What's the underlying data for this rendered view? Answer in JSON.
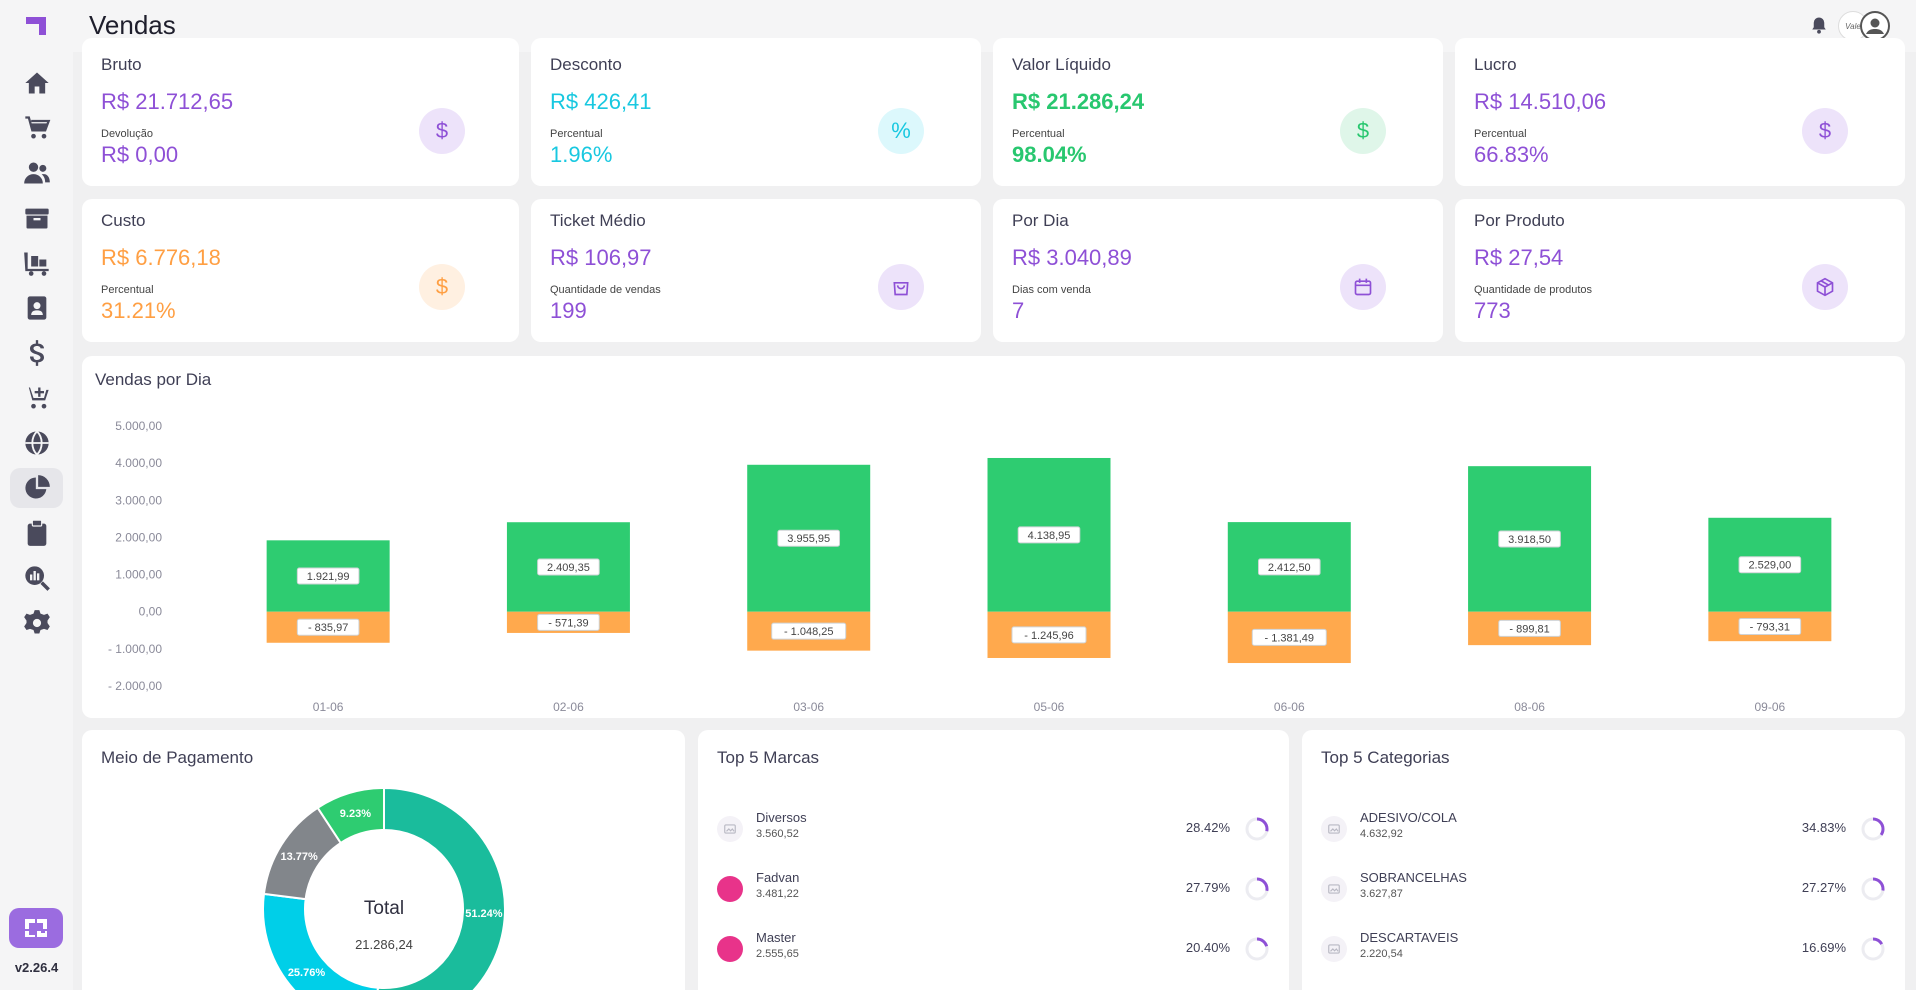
{
  "app": {
    "version": "v2.26.4",
    "page_title": "Vendas",
    "avatar_text": "Vale"
  },
  "sidebar": {
    "items": [
      {
        "name": "home-icon"
      },
      {
        "name": "cart-icon"
      },
      {
        "name": "users-icon"
      },
      {
        "name": "box-icon"
      },
      {
        "name": "cart-flatbed-icon"
      },
      {
        "name": "contact-book-icon"
      },
      {
        "name": "dollar-icon"
      },
      {
        "name": "cart-plus-icon"
      },
      {
        "name": "globe-icon"
      },
      {
        "name": "pie-chart-icon",
        "active": true
      },
      {
        "name": "clipboard-icon"
      },
      {
        "name": "search-chart-icon"
      },
      {
        "name": "gear-icon"
      }
    ]
  },
  "kpis": {
    "bruto": {
      "title": "Bruto",
      "value": "R$ 21.712,65",
      "sub_label": "Devolução",
      "sub_value": "R$ 0,00",
      "icon": "$"
    },
    "desconto": {
      "title": "Desconto",
      "value": "R$ 426,41",
      "sub_label": "Percentual",
      "sub_value": "1.96%",
      "icon": "%"
    },
    "liquido": {
      "title": "Valor Líquido",
      "value": "R$ 21.286,24",
      "sub_label": "Percentual",
      "sub_value": "98.04%",
      "icon": "$"
    },
    "lucro": {
      "title": "Lucro",
      "value": "R$ 14.510,06",
      "sub_label": "Percentual",
      "sub_value": "66.83%",
      "icon": "$"
    },
    "custo": {
      "title": "Custo",
      "value": "R$ 6.776,18",
      "sub_label": "Percentual",
      "sub_value": "31.21%",
      "icon": "$"
    },
    "ticket": {
      "title": "Ticket Médio",
      "value": "R$ 106,97",
      "sub_label": "Quantidade de vendas",
      "sub_value": "199"
    },
    "por_dia": {
      "title": "Por Dia",
      "value": "R$ 3.040,89",
      "sub_label": "Dias com venda",
      "sub_value": "7"
    },
    "por_produto": {
      "title": "Por Produto",
      "value": "R$ 27,54",
      "sub_label": "Quantidade de produtos",
      "sub_value": "773"
    }
  },
  "chart_data": {
    "type": "bar",
    "title": "Vendas por Dia",
    "categories": [
      "01-06",
      "02-06",
      "03-06",
      "05-06",
      "06-06",
      "08-06",
      "09-06"
    ],
    "series": [
      {
        "values": [
          1921.99,
          2409.35,
          3955.95,
          4138.95,
          2412.5,
          3918.5,
          2529.0
        ],
        "labels": [
          "1.921,99",
          "2.409,35",
          "3.955,95",
          "4.138,95",
          "2.412,50",
          "3.918,50",
          "2.529,00"
        ],
        "color": "#2ecc71"
      },
      {
        "values": [
          -835.97,
          -571.39,
          -1048.25,
          -1245.96,
          -1381.49,
          -899.81,
          -793.31
        ],
        "labels": [
          "- 835,97",
          "- 571,39",
          "- 1.048,25",
          "- 1.245,96",
          "- 1.381,49",
          "- 899,81",
          "- 793,31"
        ],
        "color": "#ffa94d"
      }
    ],
    "y_ticks": [
      5000,
      4000,
      3000,
      2000,
      1000,
      0,
      -1000,
      -2000
    ],
    "y_tick_labels": [
      "5.000,00",
      "4.000,00",
      "3.000,00",
      "2.000,00",
      "1.000,00",
      "0,00",
      "- 1.000,00",
      "- 2.000,00"
    ],
    "ylim": [
      -2000,
      5000
    ],
    "grid": false
  },
  "payment": {
    "title": "Meio de Pagamento",
    "center_label": "Total",
    "center_value": "21.286,24",
    "slices": [
      {
        "label": "51.24%",
        "value": 51.24,
        "color": "#1abc9c"
      },
      {
        "label": "25.76%",
        "value": 25.76,
        "color": "#00cfe8"
      },
      {
        "label": "13.77%",
        "value": 13.77,
        "color": "#82868b"
      },
      {
        "label": "9.23%",
        "value": 9.23,
        "color": "#2ecc71"
      }
    ]
  },
  "top_marcas": {
    "title": "Top 5 Marcas",
    "items": [
      {
        "name": "Diversos",
        "amount": "3.560,52",
        "pct": "28.42%",
        "pct_value": 28.42,
        "logo": false
      },
      {
        "name": "Fadvan",
        "amount": "3.481,22",
        "pct": "27.79%",
        "pct_value": 27.79,
        "logo": true
      },
      {
        "name": "Master",
        "amount": "2.555,65",
        "pct": "20.40%",
        "pct_value": 20.4,
        "logo": true
      }
    ]
  },
  "top_categorias": {
    "title": "Top 5 Categorias",
    "items": [
      {
        "name": "ADESIVO/COLA",
        "amount": "4.632,92",
        "pct": "34.83%",
        "pct_value": 34.83
      },
      {
        "name": "SOBRANCELHAS",
        "amount": "3.627,87",
        "pct": "27.27%",
        "pct_value": 27.27
      },
      {
        "name": "DESCARTAVEIS",
        "amount": "2.220,54",
        "pct": "16.69%",
        "pct_value": 16.69
      }
    ]
  }
}
